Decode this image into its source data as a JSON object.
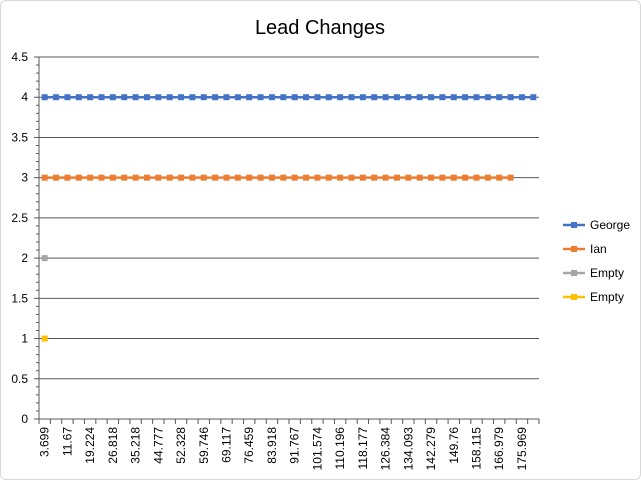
{
  "chart_data": {
    "type": "line",
    "title": "Lead Changes",
    "xlabel": "",
    "ylabel": "",
    "ylim": [
      0,
      4.5
    ],
    "ytick_step": 0.5,
    "ytick_labels": [
      "0",
      "0.5",
      "1",
      "1.5",
      "2",
      "2.5",
      "3",
      "3.5",
      "4",
      "4.5"
    ],
    "x_category_count": 44,
    "x_tick_labels": [
      "3.699",
      "11.67",
      "19.224",
      "26.818",
      "35.218",
      "44.777",
      "52.328",
      "59.746",
      "69.117",
      "76.459",
      "83.918",
      "91.767",
      "101.574",
      "110.196",
      "118.177",
      "126.384",
      "134.093",
      "142.279",
      "149.76",
      "158.115",
      "166.979",
      "175.969"
    ],
    "grid": true,
    "legend_position": "right",
    "series": [
      {
        "name": "George",
        "color": "#4472C4",
        "value": 4,
        "count": 44
      },
      {
        "name": "Ian",
        "color": "#ED7D31",
        "value": 3,
        "count": 42
      },
      {
        "name": "Empty",
        "color": "#A5A5A5",
        "value": 2,
        "count": 1
      },
      {
        "name": "Empty",
        "color": "#FFC000",
        "value": 1,
        "count": 1
      }
    ]
  }
}
